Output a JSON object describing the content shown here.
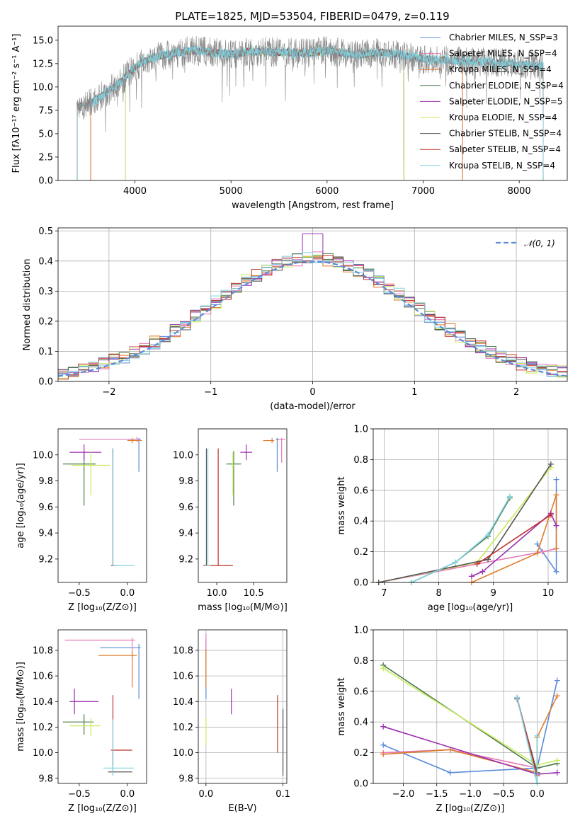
{
  "colors": {
    "chabrier_miles": "#5b8bd8",
    "salpeter_miles": "#e67ab8",
    "kroupa_miles": "#e07b28",
    "chabrier_elodie": "#4c7a4c",
    "salpeter_elodie": "#9b2fb0",
    "kroupa_elodie": "#c8ec5a",
    "chabrier_stelib": "#555555",
    "salpeter_stelib": "#c0302a",
    "kroupa_stelib": "#7fd3e0",
    "gauss": "#5b8bd8",
    "spec_gray": "#888888"
  },
  "chart_data": [
    {
      "id": "spectrum",
      "type": "line",
      "title": "PLATE=1825, MJD=53504, FIBERID=0479, z=0.119",
      "xlabel": "wavelength [Angstrom, rest frame]",
      "ylabel": "Flux [fλ10⁻¹⁷ erg cm⁻² s⁻¹ A⁻¹]",
      "xlim": [
        3200,
        8500
      ],
      "ylim": [
        0,
        16.5
      ],
      "xticks": [
        "4000",
        "5000",
        "6000",
        "7000",
        "8000"
      ],
      "yticks": [
        "0.0",
        "2.5",
        "5.0",
        "7.5",
        "10.0",
        "12.5",
        "15.0"
      ],
      "legend_position": "right",
      "legend": [
        "Chabrier MILES, N_SSP=3",
        "Salpeter MILES, N_SSP=4",
        "Kroupa MILES, N_SSP=4",
        "Chabrier ELODIE, N_SSP=4",
        "Salpeter ELODIE, N_SSP=5",
        "Kroupa ELODIE, N_SSP=4",
        "Chabrier STELIB, N_SSP=4",
        "Salpeter STELIB, N_SSP=4",
        "Kroupa STELIB, N_SSP=4"
      ],
      "continuum": [
        [
          3450,
          8.0
        ],
        [
          3550,
          8.4
        ],
        [
          3650,
          9.0
        ],
        [
          3750,
          9.8
        ],
        [
          3850,
          10.5
        ],
        [
          3950,
          11.6
        ],
        [
          4050,
          12.5
        ],
        [
          4200,
          13.2
        ],
        [
          4400,
          13.6
        ],
        [
          4600,
          13.9
        ],
        [
          4800,
          13.7
        ],
        [
          5000,
          13.5
        ],
        [
          5200,
          13.8
        ],
        [
          5500,
          13.7
        ],
        [
          5800,
          13.6
        ],
        [
          6000,
          13.9
        ],
        [
          6300,
          13.4
        ],
        [
          6600,
          13.7
        ],
        [
          6800,
          13.3
        ],
        [
          7000,
          13.0
        ],
        [
          7300,
          12.8
        ],
        [
          7600,
          12.7
        ],
        [
          7900,
          12.5
        ],
        [
          8200,
          12.3
        ]
      ],
      "data_range": [
        3400,
        8250
      ],
      "model_ranges": [
        {
          "model": "Chabrier MILES",
          "start": 3540,
          "end": 7410
        },
        {
          "model": "Salpeter MILES",
          "start": 3540,
          "end": 7410
        },
        {
          "model": "Kroupa MILES",
          "start": 3540,
          "end": 7410
        },
        {
          "model": "Chabrier ELODIE",
          "start": 3900,
          "end": 6800
        },
        {
          "model": "Salpeter ELODIE",
          "start": 3900,
          "end": 6800
        },
        {
          "model": "Kroupa ELODIE",
          "start": 3900,
          "end": 6800
        },
        {
          "model": "Chabrier STELIB",
          "start": 3400,
          "end": 8250
        },
        {
          "model": "Salpeter STELIB",
          "start": 3400,
          "end": 8250
        },
        {
          "model": "Kroupa STELIB",
          "start": 3400,
          "end": 8250
        }
      ]
    },
    {
      "id": "residuals",
      "type": "line",
      "xlabel": "(data-model)/error",
      "ylabel": "Normed distribution",
      "xlim": [
        -2.5,
        2.5
      ],
      "ylim": [
        0,
        0.51
      ],
      "xticks": [
        "−2",
        "−1",
        "0",
        "1",
        "2"
      ],
      "yticks": [
        "0.0",
        "0.1",
        "0.2",
        "0.3",
        "0.4",
        "0.5"
      ],
      "grid": true,
      "legend_position": "top-right",
      "legend": [
        "𝒩(0, 1)"
      ],
      "bins": {
        "start": -2.5,
        "width": 0.1,
        "count": 50
      },
      "gaussian": {
        "mean": 0,
        "sigma": 1
      },
      "histogram_peak": {
        "x": -0.05,
        "y": 0.49
      }
    },
    {
      "id": "age_vs_Z",
      "type": "scatter",
      "xlabel": "Z [log₁₀(Z/Z⊙)]",
      "ylabel": "age  [log₁₀(age/yr)]",
      "xlim": [
        -0.72,
        0.2
      ],
      "ylim": [
        9.02,
        10.2
      ],
      "xticks": [
        "−0.5",
        "0.0"
      ],
      "yticks": [
        "9.2",
        "9.4",
        "9.6",
        "9.8",
        "10.0"
      ],
      "points": [
        {
          "model": "Chabrier MILES",
          "x": 0.12,
          "y": 10.12,
          "xerr": [
            0.12,
            0.02
          ],
          "yerr": [
            0.25,
            0.01
          ]
        },
        {
          "model": "Salpeter MILES",
          "x": 0.1,
          "y": 10.12,
          "xerr": [
            0.6,
            0.03
          ],
          "yerr": [
            0.02,
            0.02
          ]
        },
        {
          "model": "Kroupa MILES",
          "x": 0.05,
          "y": 10.11,
          "xerr": [
            0.05,
            0.1
          ],
          "yerr": [
            0.02,
            0.02
          ]
        },
        {
          "model": "Chabrier ELODIE",
          "x": -0.45,
          "y": 9.93,
          "xerr": [
            0.22,
            0.12
          ],
          "yerr": [
            0.32,
            0.1
          ]
        },
        {
          "model": "Salpeter ELODIE",
          "x": -0.45,
          "y": 10.02,
          "xerr": [
            0.15,
            0.18
          ],
          "yerr": [
            0.06,
            0.06
          ]
        },
        {
          "model": "Kroupa ELODIE",
          "x": -0.38,
          "y": 9.92,
          "xerr": [
            0.2,
            0.2
          ],
          "yerr": [
            0.23,
            0.1
          ]
        },
        {
          "model": "Chabrier STELIB",
          "x": -0.15,
          "y": 9.15,
          "xerr": [
            0.0,
            0.05
          ],
          "yerr": [
            0.0,
            0.9
          ]
        },
        {
          "model": "Salpeter STELIB",
          "x": -0.15,
          "y": 9.15,
          "xerr": [
            0.02,
            0.04
          ],
          "yerr": [
            0.0,
            0.9
          ]
        },
        {
          "model": "Kroupa STELIB",
          "x": -0.15,
          "y": 9.15,
          "xerr": [
            0.0,
            0.22
          ],
          "yerr": [
            0.0,
            0.9
          ]
        }
      ]
    },
    {
      "id": "age_vs_mass",
      "type": "scatter",
      "xlabel": "mass [log₁₀(M/M⊙)]",
      "ylabel": "",
      "xlim": [
        9.75,
        10.95
      ],
      "ylim": [
        9.02,
        10.2
      ],
      "xticks": [
        "10.0",
        "10.5"
      ],
      "yticks": [
        "9.2",
        "9.4",
        "9.6",
        "9.8",
        "10.0"
      ],
      "points": [
        {
          "model": "Chabrier MILES",
          "x": 10.82,
          "y": 10.12,
          "xerr": [
            0.02,
            0.02
          ],
          "yerr": [
            0.25,
            0.01
          ]
        },
        {
          "model": "Salpeter MILES",
          "x": 10.88,
          "y": 10.12,
          "xerr": [
            0.05,
            0.05
          ],
          "yerr": [
            0.18,
            0.01
          ]
        },
        {
          "model": "Kroupa MILES",
          "x": 10.75,
          "y": 10.11,
          "xerr": [
            0.12,
            0.03
          ],
          "yerr": [
            0.02,
            0.02
          ]
        },
        {
          "model": "Chabrier ELODIE",
          "x": 10.23,
          "y": 9.93,
          "xerr": [
            0.1,
            0.1
          ],
          "yerr": [
            0.32,
            0.1
          ]
        },
        {
          "model": "Salpeter ELODIE",
          "x": 10.4,
          "y": 10.02,
          "xerr": [
            0.08,
            0.08
          ],
          "yerr": [
            0.06,
            0.06
          ]
        },
        {
          "model": "Kroupa ELODIE",
          "x": 10.22,
          "y": 9.92,
          "xerr": [
            0.02,
            0.02
          ],
          "yerr": [
            0.23,
            0.1
          ]
        },
        {
          "model": "Chabrier STELIB",
          "x": 9.86,
          "y": 9.15,
          "xerr": [
            0.02,
            0.02
          ],
          "yerr": [
            0.0,
            0.9
          ]
        },
        {
          "model": "Salpeter STELIB",
          "x": 10.02,
          "y": 9.15,
          "xerr": [
            0.2,
            0.2
          ],
          "yerr": [
            0.0,
            0.9
          ]
        },
        {
          "model": "Kroupa STELIB",
          "x": 9.88,
          "y": 9.15,
          "xerr": [
            0.03,
            0.03
          ],
          "yerr": [
            0.0,
            0.9
          ]
        }
      ]
    },
    {
      "id": "weight_vs_age",
      "type": "line",
      "xlabel": "age  [log₁₀(age/yr)]",
      "ylabel": "mass weight",
      "xlim": [
        6.8,
        10.35
      ],
      "ylim": [
        0,
        1.0
      ],
      "xticks": [
        "7",
        "8",
        "9",
        "10"
      ],
      "yticks": [
        "0.0",
        "0.2",
        "0.4",
        "0.6",
        "0.8",
        "1.0"
      ],
      "grid": true,
      "series": [
        {
          "model": "Chabrier MILES",
          "x": [
            9.8,
            10.15,
            10.15
          ],
          "y": [
            0.25,
            0.07,
            0.67
          ]
        },
        {
          "model": "Salpeter MILES",
          "x": [
            6.9,
            9.9,
            10.15
          ],
          "y": [
            0.0,
            0.2,
            0.22
          ]
        },
        {
          "model": "Kroupa MILES",
          "x": [
            8.6,
            9.8,
            10.15,
            10.15
          ],
          "y": [
            0.0,
            0.19,
            0.57,
            0.22
          ]
        },
        {
          "model": "Chabrier ELODIE",
          "x": [
            7.5,
            8.3,
            8.9,
            9.3
          ],
          "y": [
            0.0,
            0.13,
            0.3,
            0.55
          ]
        },
        {
          "model": "Salpeter ELODIE",
          "x": [
            8.6,
            8.8,
            10.05,
            10.15
          ],
          "y": [
            0.04,
            0.07,
            0.45,
            0.37
          ]
        },
        {
          "model": "Kroupa ELODIE",
          "x": [
            6.9,
            8.7,
            10.05
          ],
          "y": [
            0.0,
            0.13,
            0.75
          ]
        },
        {
          "model": "Chabrier STELIB",
          "x": [
            6.9,
            8.9,
            10.05
          ],
          "y": [
            0.0,
            0.15,
            0.77
          ]
        },
        {
          "model": "Salpeter STELIB",
          "x": [
            8.7,
            10.05
          ],
          "y": [
            0.12,
            0.44
          ]
        },
        {
          "model": "Kroupa STELIB",
          "x": [
            7.5,
            8.3,
            8.9,
            9.3
          ],
          "y": [
            0.0,
            0.13,
            0.31,
            0.56
          ]
        }
      ]
    },
    {
      "id": "mass_vs_Z",
      "type": "scatter",
      "xlabel": "Z [log₁₀(Z/Z⊙)]",
      "ylabel": "mass [log₁₀(M/M⊙)]",
      "xlim": [
        -0.72,
        0.2
      ],
      "ylim": [
        9.76,
        10.96
      ],
      "xticks": [
        "−0.5",
        "0.0"
      ],
      "yticks": [
        "9.8",
        "10.0",
        "10.2",
        "10.4",
        "10.6",
        "10.8"
      ],
      "points": [
        {
          "model": "Chabrier MILES",
          "x": 0.12,
          "y": 10.82,
          "xerr": [
            0.4,
            0.02
          ],
          "yerr": [
            0.4,
            0.03
          ]
        },
        {
          "model": "Salpeter MILES",
          "x": 0.05,
          "y": 10.88,
          "xerr": [
            0.7,
            0.03
          ],
          "yerr": [
            0.15,
            0.02
          ]
        },
        {
          "model": "Kroupa MILES",
          "x": 0.05,
          "y": 10.76,
          "xerr": [
            0.35,
            0.05
          ],
          "yerr": [
            0.25,
            0.03
          ]
        },
        {
          "model": "Chabrier ELODIE",
          "x": -0.45,
          "y": 10.24,
          "xerr": [
            0.22,
            0.1
          ],
          "yerr": [
            0.1,
            0.06
          ]
        },
        {
          "model": "Salpeter ELODIE",
          "x": -0.55,
          "y": 10.4,
          "xerr": [
            0.05,
            0.25
          ],
          "yerr": [
            0.1,
            0.1
          ]
        },
        {
          "model": "Kroupa ELODIE",
          "x": -0.38,
          "y": 10.21,
          "xerr": [
            0.22,
            0.1
          ],
          "yerr": [
            0.08,
            0.06
          ]
        },
        {
          "model": "Chabrier STELIB",
          "x": -0.15,
          "y": 9.85,
          "xerr": [
            0.05,
            0.2
          ],
          "yerr": [
            0.02,
            0.15
          ]
        },
        {
          "model": "Salpeter STELIB",
          "x": -0.15,
          "y": 10.02,
          "xerr": [
            0.02,
            0.2
          ],
          "yerr": [
            0.12,
            0.43
          ]
        },
        {
          "model": "Kroupa STELIB",
          "x": -0.15,
          "y": 9.88,
          "xerr": [
            0.1,
            0.22
          ],
          "yerr": [
            0.06,
            0.38
          ]
        }
      ]
    },
    {
      "id": "mass_vs_ebv",
      "type": "scatter",
      "xlabel": "E(B-V)",
      "ylabel": "",
      "xlim": [
        -0.01,
        0.105
      ],
      "ylim": [
        9.76,
        10.96
      ],
      "xticks": [
        "0.0",
        "0.1"
      ],
      "yticks": [
        "9.8",
        "10.0",
        "10.2",
        "10.4",
        "10.6",
        "10.8"
      ],
      "grid": true,
      "points": [
        {
          "model": "Chabrier MILES",
          "x": 0.0,
          "y": 10.82,
          "yerr": [
            0.4,
            0.05
          ]
        },
        {
          "model": "Salpeter MILES",
          "x": 0.0,
          "y": 10.88,
          "yerr": [
            0.15,
            0.05
          ]
        },
        {
          "model": "Kroupa MILES",
          "x": 0.0,
          "y": 10.76,
          "yerr": [
            0.25,
            0.05
          ]
        },
        {
          "model": "Kroupa ELODIE",
          "x": 0.0,
          "y": 10.21,
          "yerr": [
            0.15,
            0.06
          ]
        },
        {
          "model": "Salpeter ELODIE",
          "x": 0.033,
          "y": 10.4,
          "yerr": [
            0.1,
            0.1
          ]
        },
        {
          "model": "Salpeter STELIB",
          "x": 0.093,
          "y": 10.2,
          "yerr": [
            0.2,
            0.25
          ]
        },
        {
          "model": "Kroupa STELIB",
          "x": 0.1,
          "y": 10.1,
          "yerr": [
            0.25,
            0.25
          ]
        },
        {
          "model": "Chabrier STELIB",
          "x": 0.1,
          "y": 10.08,
          "yerr": [
            0.26,
            0.26
          ]
        }
      ]
    },
    {
      "id": "weight_vs_Z",
      "type": "line",
      "xlabel": "Z [log₁₀(Z/Z⊙)]",
      "ylabel": "mass weight",
      "xlim": [
        -2.45,
        0.45
      ],
      "ylim": [
        0,
        1.0
      ],
      "xticks": [
        "−2.0",
        "−1.5",
        "−1.0",
        "−0.5",
        "0.0"
      ],
      "yticks": [
        "0.0",
        "0.2",
        "0.4",
        "0.6",
        "0.8",
        "1.0"
      ],
      "grid": true,
      "series": [
        {
          "model": "Chabrier MILES",
          "x": [
            -2.3,
            -1.3,
            0.0,
            0.3
          ],
          "y": [
            0.25,
            0.07,
            0.1,
            0.67
          ]
        },
        {
          "model": "Salpeter MILES",
          "x": [
            -2.3,
            -1.3,
            0.0
          ],
          "y": [
            0.2,
            0.22,
            0.1
          ]
        },
        {
          "model": "Kroupa MILES",
          "x": [
            -2.3,
            -1.3,
            0.0,
            0.0,
            0.3
          ],
          "y": [
            0.19,
            0.22,
            0.07,
            0.3,
            0.57
          ]
        },
        {
          "model": "Chabrier ELODIE",
          "x": [
            -2.3,
            0.0,
            0.3
          ],
          "y": [
            0.77,
            0.1,
            0.13
          ]
        },
        {
          "model": "Salpeter ELODIE",
          "x": [
            -2.3,
            0.0,
            0.3
          ],
          "y": [
            0.37,
            0.06,
            0.07
          ]
        },
        {
          "model": "Kroupa ELODIE",
          "x": [
            -2.3,
            0.0,
            0.3
          ],
          "y": [
            0.75,
            0.12,
            0.15
          ]
        },
        {
          "model": "Chabrier STELIB",
          "x": [
            -0.3,
            0.0
          ],
          "y": [
            0.55,
            0.07
          ]
        },
        {
          "model": "Salpeter STELIB",
          "x": [
            -0.3,
            0.0
          ],
          "y": [
            0.56,
            0.05
          ]
        },
        {
          "model": "Kroupa STELIB",
          "x": [
            -0.3,
            0.0,
            0.0
          ],
          "y": [
            0.56,
            0.0,
            0.31
          ]
        }
      ]
    }
  ]
}
